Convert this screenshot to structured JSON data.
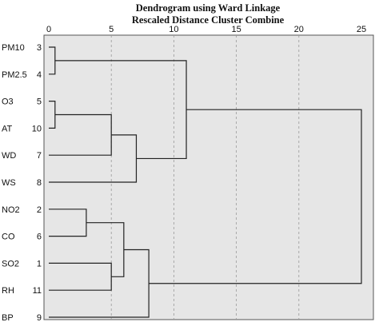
{
  "chart_data": {
    "type": "dendrogram",
    "title": "Dendrogram using Ward Linkage",
    "subtitle": "Rescaled Distance Cluster Combine",
    "xlim": [
      0,
      25
    ],
    "x_ticks": [
      "0",
      "5",
      "10",
      "15",
      "20",
      "25"
    ],
    "x_tick_values": [
      0,
      5,
      10,
      15,
      20,
      25
    ],
    "grid": true,
    "grid_style": "dashed vertical",
    "leaves": [
      {
        "name": "PM10",
        "num": "3"
      },
      {
        "name": "PM2.5",
        "num": "4"
      },
      {
        "name": "O3",
        "num": "5"
      },
      {
        "name": "AT",
        "num": "10"
      },
      {
        "name": "WD",
        "num": "7"
      },
      {
        "name": "WS",
        "num": "8"
      },
      {
        "name": "NO2",
        "num": "2"
      },
      {
        "name": "CO",
        "num": "6"
      },
      {
        "name": "SO2",
        "num": "1"
      },
      {
        "name": "RH",
        "num": "11"
      },
      {
        "name": "BP",
        "num": "9"
      }
    ],
    "merges": [
      {
        "id": "m1",
        "children": [
          "L0",
          "L1"
        ],
        "distance": 0.5
      },
      {
        "id": "m2",
        "children": [
          "L2",
          "L3"
        ],
        "distance": 0.5
      },
      {
        "id": "m3",
        "children": [
          "m2",
          "L4"
        ],
        "distance": 5
      },
      {
        "id": "m4",
        "children": [
          "m3",
          "L5"
        ],
        "distance": 7
      },
      {
        "id": "m5",
        "children": [
          "m1",
          "m4"
        ],
        "distance": 11
      },
      {
        "id": "m6",
        "children": [
          "L6",
          "L7"
        ],
        "distance": 3
      },
      {
        "id": "m7",
        "children": [
          "L9",
          "L8"
        ],
        "distance": 5
      },
      {
        "id": "m8",
        "children": [
          "m6",
          "m7"
        ],
        "distance": 6
      },
      {
        "id": "m9",
        "children": [
          "m8",
          "L10"
        ],
        "distance": 8
      },
      {
        "id": "m10",
        "children": [
          "m5",
          "m9"
        ],
        "distance": 25
      }
    ]
  }
}
